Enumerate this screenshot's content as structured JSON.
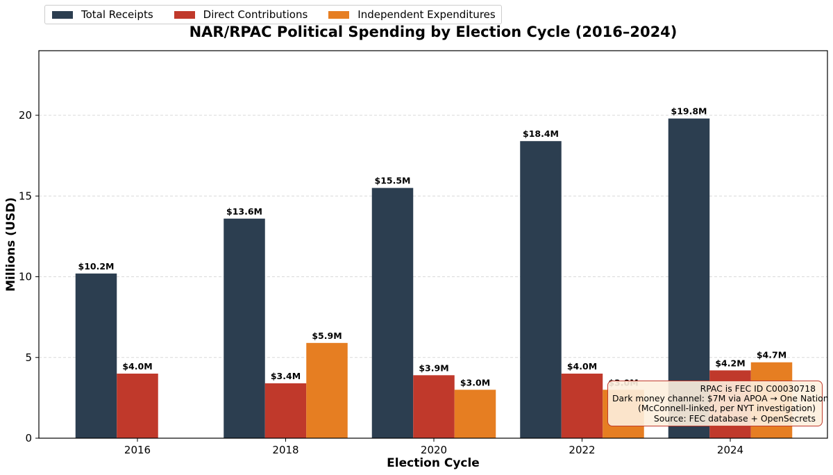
{
  "chart_data": {
    "type": "bar",
    "title": "NAR/RPAC Political Spending by Election Cycle (2016–2024)",
    "xlabel": "Election Cycle",
    "ylabel": "Millions (USD)",
    "categories": [
      "2016",
      "2018",
      "2020",
      "2022",
      "2024"
    ],
    "series": [
      {
        "name": "Total Receipts",
        "color": "#2c3e50",
        "values": [
          10.2,
          13.6,
          15.5,
          18.4,
          19.8
        ],
        "labels": [
          "$10.2M",
          "$13.6M",
          "$15.5M",
          "$18.4M",
          "$19.8M"
        ]
      },
      {
        "name": "Direct Contributions",
        "color": "#c0392b",
        "values": [
          4.0,
          3.4,
          3.9,
          4.0,
          4.2
        ],
        "labels": [
          "$4.0M",
          "$3.4M",
          "$3.9M",
          "$4.0M",
          "$4.2M"
        ]
      },
      {
        "name": "Independent Expenditures",
        "color": "#e67e22",
        "values": [
          null,
          5.9,
          3.0,
          3.0,
          4.7
        ],
        "labels": [
          "",
          "$5.9M",
          "$3.0M",
          "$3.0M",
          "$4.7M"
        ]
      }
    ],
    "ylim": [
      0,
      24
    ],
    "yticks": [
      0,
      5,
      10,
      15,
      20
    ],
    "grid": "y-dashed",
    "legend_position": "top-left"
  },
  "annotation": {
    "lines": [
      "RPAC is FEC ID C00030718",
      "Dark money channel: $7M via APOA → One Nation",
      "(McConnell-linked, per NYT investigation)",
      "Source: FEC database + OpenSecrets"
    ],
    "background": "#fdf0de",
    "border": "#c0392b"
  }
}
